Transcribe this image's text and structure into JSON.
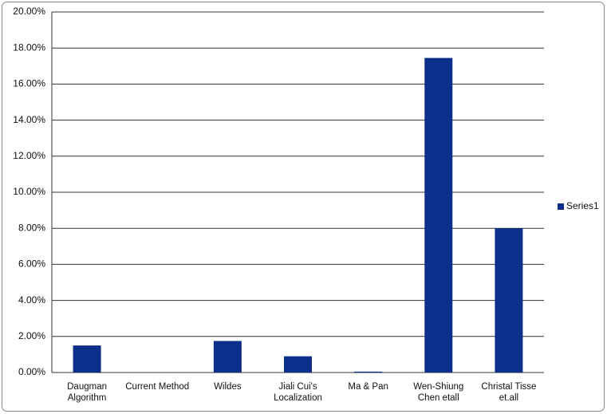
{
  "chart_data": {
    "type": "bar",
    "categories": [
      "Daugman\nAlgorithm",
      "Current Method",
      "Wildes",
      "Jiali Cui's\nLocalization",
      "Ma & Pan",
      "Wen-Shiung\nChen etall",
      "Christal Tisse\net.all"
    ],
    "series": [
      {
        "name": "Series1",
        "color": "#0b2f8a",
        "values": [
          1.5,
          0,
          1.75,
          0.9,
          0.05,
          17.45,
          8.0
        ]
      }
    ],
    "ylim": [
      0,
      20
    ],
    "yticks": [
      {
        "value": 0,
        "label": "0.00%"
      },
      {
        "value": 2,
        "label": "2.00%"
      },
      {
        "value": 4,
        "label": "4.00%"
      },
      {
        "value": 6,
        "label": "6.00%"
      },
      {
        "value": 8,
        "label": "8.00%"
      },
      {
        "value": 10,
        "label": "10.00%"
      },
      {
        "value": 12,
        "label": "12.00%"
      },
      {
        "value": 14,
        "label": "14.00%"
      },
      {
        "value": 16,
        "label": "16.00%"
      },
      {
        "value": 18,
        "label": "18.00%"
      },
      {
        "value": 20,
        "label": "20.00%"
      }
    ],
    "grid": true,
    "legend": "right"
  }
}
